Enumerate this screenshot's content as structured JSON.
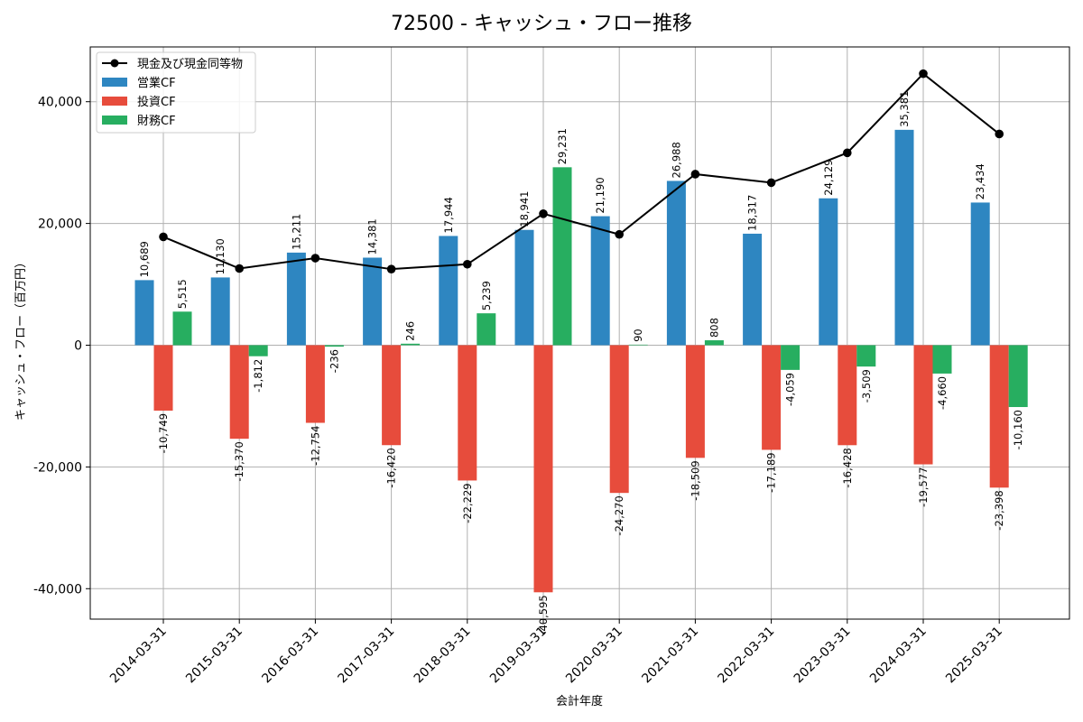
{
  "chart_data": {
    "type": "bar",
    "title": "72500 - キャッシュ・フロー推移",
    "xlabel": "会計年度",
    "ylabel": "キャッシュ・フロー（百万円）",
    "categories": [
      "2014-03-31",
      "2015-03-31",
      "2016-03-31",
      "2017-03-31",
      "2018-03-31",
      "2019-03-31",
      "2020-03-31",
      "2021-03-31",
      "2022-03-31",
      "2023-03-31",
      "2024-03-31",
      "2025-03-31"
    ],
    "ylim": [
      -45000,
      49000
    ],
    "yticks": [
      -40000,
      -20000,
      0,
      20000,
      40000
    ],
    "ytick_labels": [
      "-40,000",
      "-20,000",
      "0",
      "20,000",
      "40,000"
    ],
    "grid": true,
    "legend_position": "top-left",
    "series": [
      {
        "name": "営業CF",
        "kind": "bar",
        "color": "#2e86c1",
        "values": [
          10689,
          11130,
          15211,
          14381,
          17944,
          18941,
          21190,
          26988,
          18317,
          24129,
          35381,
          23434
        ],
        "labels": [
          "10,689",
          "11,130",
          "15,211",
          "14,381",
          "17,944",
          "18,941",
          "21,190",
          "26,988",
          "18,317",
          "24,129",
          "35,381",
          "23,434"
        ]
      },
      {
        "name": "投資CF",
        "kind": "bar",
        "color": "#e74c3c",
        "values": [
          -10749,
          -15370,
          -12754,
          -16420,
          -22229,
          -40595,
          -24270,
          -18509,
          -17189,
          -16428,
          -19577,
          -23398
        ],
        "labels": [
          "-10,749",
          "-15,370",
          "-12,754",
          "-16,420",
          "-22,229",
          "-40,595",
          "-24,270",
          "-18,509",
          "-17,189",
          "-16,428",
          "-19,577",
          "-23,398"
        ]
      },
      {
        "name": "財務CF",
        "kind": "bar",
        "color": "#27ae60",
        "values": [
          5515,
          -1812,
          -236,
          246,
          5239,
          29231,
          90,
          808,
          -4059,
          -3509,
          -4660,
          -10160
        ],
        "labels": [
          "5,515",
          "-1,812",
          "-236",
          "246",
          "5,239",
          "29,231",
          "90",
          "808",
          "-4,059",
          "-3,509",
          "-4,660",
          "-10,160"
        ]
      },
      {
        "name": "現金及び現金同等物",
        "kind": "line",
        "color": "#000000",
        "values": [
          17800,
          12600,
          14300,
          12500,
          13300,
          21600,
          18200,
          28100,
          26700,
          31600,
          44600,
          34700
        ]
      }
    ]
  }
}
